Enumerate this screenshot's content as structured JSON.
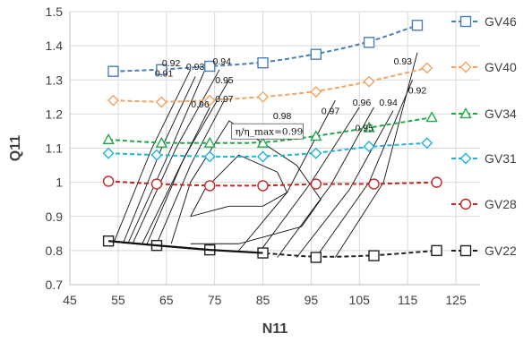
{
  "chart_data": {
    "type": "line",
    "xlabel": "N11",
    "ylabel": "Q11",
    "xlim": [
      45,
      130
    ],
    "ylim": [
      0.7,
      1.5
    ],
    "xticks": [
      45,
      55,
      65,
      75,
      85,
      95,
      105,
      115,
      125
    ],
    "yticks": [
      0.7,
      0.8,
      0.9,
      1,
      1.1,
      1.2,
      1.3,
      1.4,
      1.5
    ],
    "xtick_labels": [
      "45",
      "55",
      "65",
      "75",
      "85",
      "95",
      "105",
      "115",
      "125"
    ],
    "ytick_labels": [
      "0.7",
      "0.8",
      "0.9",
      "1",
      "1.1",
      "1.2",
      "1.3",
      "1.4",
      "1.5"
    ],
    "grid": true,
    "legend_position": "right",
    "series": [
      {
        "name": "GV46",
        "color": "#4a7ebb",
        "marker": "square",
        "x": [
          54,
          64,
          74,
          85,
          96,
          107,
          117
        ],
        "y": [
          1.325,
          1.33,
          1.34,
          1.35,
          1.375,
          1.41,
          1.46
        ]
      },
      {
        "name": "GV40",
        "color": "#f4a460",
        "marker": "diamond",
        "x": [
          54,
          64,
          74,
          85,
          96,
          107,
          119
        ],
        "y": [
          1.24,
          1.235,
          1.24,
          1.25,
          1.265,
          1.295,
          1.335
        ]
      },
      {
        "name": "GV34",
        "color": "#20a84b",
        "marker": "triangle",
        "x": [
          53,
          64,
          74,
          85,
          96,
          107,
          120
        ],
        "y": [
          1.125,
          1.115,
          1.115,
          1.115,
          1.135,
          1.16,
          1.19
        ]
      },
      {
        "name": "GV31",
        "color": "#1fb3e0",
        "marker": "diamond",
        "x": [
          53,
          63,
          74,
          85,
          96,
          107,
          119
        ],
        "y": [
          1.085,
          1.08,
          1.075,
          1.075,
          1.085,
          1.105,
          1.115
        ]
      },
      {
        "name": "GV28",
        "color": "#c0282a",
        "marker": "circle",
        "x": [
          53,
          63,
          74,
          85,
          96,
          108,
          121
        ],
        "y": [
          1.003,
          0.995,
          0.99,
          0.99,
          0.995,
          0.995,
          1.0
        ]
      },
      {
        "name": "GV22",
        "color": "#222222",
        "marker": "square",
        "x": [
          53,
          63,
          74,
          85,
          96,
          108,
          121
        ],
        "y": [
          0.828,
          0.815,
          0.802,
          0.793,
          0.78,
          0.785,
          0.8
        ]
      }
    ],
    "contours": [
      {
        "label": "0.92",
        "x": [
          54,
          62,
          70
        ],
        "y": [
          0.82,
          1.1,
          1.33
        ]
      },
      {
        "label": "0.91",
        "x": [
          56,
          64,
          71
        ],
        "y": [
          0.82,
          1.1,
          1.31
        ]
      },
      {
        "label": "0.93",
        "x": [
          57,
          66,
          73
        ],
        "y": [
          0.82,
          1.1,
          1.33
        ]
      },
      {
        "label": "0.94",
        "x": [
          58,
          67,
          76
        ],
        "y": [
          0.82,
          1.1,
          1.33
        ]
      },
      {
        "label": "0.95",
        "x": [
          60,
          69,
          78
        ],
        "y": [
          0.82,
          1.08,
          1.3
        ]
      },
      {
        "label": "0.96",
        "x": [
          61,
          68,
          74
        ],
        "y": [
          0.82,
          1.05,
          1.22
        ]
      },
      {
        "label": "0.97",
        "x": [
          63,
          70,
          77
        ],
        "y": [
          0.82,
          1.05,
          1.24
        ]
      },
      {
        "label": "0.98",
        "x": [
          66,
          70,
          78,
          92,
          97,
          93,
          80,
          70
        ],
        "y": [
          0.82,
          1.0,
          1.18,
          1.05,
          0.95,
          0.87,
          0.82,
          0.82
        ]
      },
      {
        "label": "0.99",
        "x": [
          70,
          73,
          80,
          88,
          90,
          85,
          78,
          70
        ],
        "y": [
          0.9,
          0.98,
          1.08,
          1.03,
          0.97,
          0.93,
          0.93,
          0.9
        ]
      },
      {
        "label": "0.97",
        "x": [
          80,
          90,
          100
        ],
        "y": [
          0.8,
          0.97,
          1.24
        ]
      },
      {
        "label": "0.96",
        "x": [
          84,
          95,
          105
        ],
        "y": [
          0.79,
          1.0,
          1.22
        ]
      },
      {
        "label": "0.95",
        "x": [
          88,
          99,
          108
        ],
        "y": [
          0.78,
          0.99,
          1.22
        ]
      },
      {
        "label": "0.94",
        "x": [
          92,
          103,
          112
        ],
        "y": [
          0.78,
          0.98,
          1.21
        ]
      },
      {
        "label": "0.93",
        "x": [
          96,
          107,
          116
        ],
        "y": [
          0.78,
          1.0,
          1.3
        ]
      },
      {
        "label": "0.92",
        "x": [
          100,
          110,
          117
        ],
        "y": [
          0.78,
          1.0,
          1.38
        ]
      }
    ],
    "contour_labels": [
      {
        "text": "0.92",
        "x": 66,
        "y": 1.34
      },
      {
        "text": "0.93",
        "x": 71,
        "y": 1.33
      },
      {
        "text": "0.94",
        "x": 76.5,
        "y": 1.345
      },
      {
        "text": "0.91",
        "x": 64.5,
        "y": 1.31
      },
      {
        "text": "0.95",
        "x": 77,
        "y": 1.29
      },
      {
        "text": "0.97",
        "x": 77,
        "y": 1.235
      },
      {
        "text": "0.96",
        "x": 72,
        "y": 1.22
      },
      {
        "text": "0.98",
        "x": 89,
        "y": 1.185
      },
      {
        "text": "0.97",
        "x": 99,
        "y": 1.2
      },
      {
        "text": "0.96",
        "x": 105.5,
        "y": 1.225
      },
      {
        "text": "0.94",
        "x": 111,
        "y": 1.225
      },
      {
        "text": "0.95",
        "x": 106,
        "y": 1.15
      },
      {
        "text": "0.93",
        "x": 114,
        "y": 1.345
      },
      {
        "text": "0.92",
        "x": 117,
        "y": 1.26
      }
    ],
    "boxed_annotation": {
      "text": "η/η_max=0.99",
      "x": 80,
      "y": 1.14
    }
  }
}
